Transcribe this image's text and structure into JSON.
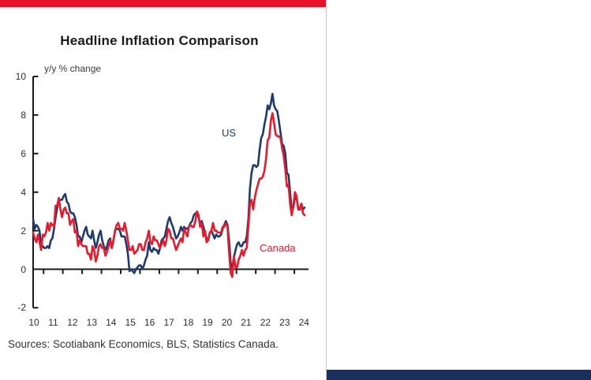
{
  "page": {
    "background": "#ffffff",
    "top_band_color": "#e8112a",
    "bottom_band_color": "#1b2f5c",
    "divider_color": "#c9c9c9"
  },
  "chart": {
    "title": "Headline Inflation Comparison",
    "unit_label": "y/y % change",
    "series_labels": {
      "us": "US",
      "canada": "Canada"
    },
    "sources": "Sources: Scotiabank Economics, BLS, Statistics Canada."
  },
  "chart_data": {
    "type": "line",
    "title": "Headline Inflation Comparison",
    "ylabel": "y/y % change",
    "ylim": [
      -2,
      10
    ],
    "yticks": [
      10,
      8,
      6,
      4,
      2,
      0,
      -2
    ],
    "xtick_labels": [
      "10",
      "11",
      "12",
      "13",
      "14",
      "15",
      "16",
      "17",
      "18",
      "19",
      "20",
      "21",
      "22",
      "23",
      "24"
    ],
    "x_unit": "monthly",
    "x_range": [
      "2010-01",
      "2024-02"
    ],
    "grid": false,
    "legend_position": "inline-annotations",
    "axis_color": "#1a1a1a",
    "series": [
      {
        "name": "US",
        "color": "#1f3a6e",
        "values": [
          2.6,
          2.1,
          2.3,
          2.2,
          2.0,
          1.1,
          1.2,
          1.1,
          1.1,
          1.2,
          1.1,
          1.5,
          1.6,
          2.1,
          2.7,
          3.2,
          3.6,
          3.6,
          3.6,
          3.8,
          3.9,
          3.5,
          3.4,
          3.0,
          2.9,
          2.9,
          2.7,
          2.3,
          1.7,
          1.7,
          1.4,
          1.7,
          2.0,
          2.2,
          1.8,
          1.7,
          1.6,
          2.0,
          1.5,
          1.1,
          1.4,
          1.8,
          2.0,
          1.5,
          1.2,
          1.0,
          1.2,
          1.5,
          1.6,
          1.1,
          1.5,
          2.0,
          2.1,
          2.1,
          2.0,
          1.7,
          1.7,
          1.7,
          1.3,
          0.8,
          -0.1,
          0.0,
          -0.1,
          -0.2,
          0.0,
          0.1,
          0.2,
          0.2,
          0.0,
          0.2,
          0.5,
          0.7,
          1.4,
          1.0,
          0.9,
          1.1,
          1.0,
          1.0,
          0.8,
          1.1,
          1.5,
          1.6,
          1.7,
          2.1,
          2.5,
          2.7,
          2.4,
          2.2,
          1.9,
          1.6,
          1.7,
          1.9,
          2.2,
          2.0,
          2.2,
          2.1,
          2.1,
          2.2,
          2.4,
          2.5,
          2.8,
          2.9,
          2.9,
          2.7,
          2.3,
          2.5,
          2.2,
          1.9,
          1.6,
          1.5,
          1.9,
          2.0,
          1.8,
          1.6,
          1.8,
          1.7,
          1.7,
          1.8,
          2.1,
          2.3,
          2.5,
          2.3,
          1.5,
          0.3,
          0.1,
          0.6,
          1.0,
          1.3,
          1.4,
          1.2,
          1.2,
          1.4,
          1.4,
          1.7,
          2.6,
          4.2,
          5.0,
          5.4,
          5.4,
          5.3,
          5.4,
          6.2,
          6.8,
          7.0,
          7.5,
          7.9,
          8.5,
          8.3,
          8.6,
          9.1,
          8.5,
          8.3,
          8.2,
          7.7,
          7.1,
          6.5,
          6.4,
          6.0,
          5.0,
          4.9,
          4.0,
          3.0,
          3.2,
          3.7,
          3.7,
          3.2,
          3.1,
          3.4,
          3.1,
          3.2
        ]
      },
      {
        "name": "Canada",
        "color": "#e8192b",
        "values": [
          1.9,
          1.6,
          1.4,
          1.8,
          1.4,
          1.0,
          1.8,
          1.7,
          1.9,
          2.4,
          2.0,
          2.4,
          2.3,
          2.2,
          3.3,
          3.3,
          3.7,
          3.1,
          2.7,
          3.1,
          3.2,
          2.9,
          2.9,
          2.3,
          2.5,
          2.6,
          1.9,
          2.0,
          1.2,
          1.5,
          1.3,
          1.2,
          1.2,
          1.2,
          0.8,
          0.8,
          0.5,
          1.2,
          1.0,
          0.4,
          0.7,
          1.2,
          1.3,
          1.1,
          1.1,
          0.7,
          0.9,
          1.2,
          1.5,
          1.1,
          1.5,
          2.0,
          2.3,
          2.4,
          2.1,
          2.1,
          2.0,
          2.4,
          2.0,
          1.5,
          1.0,
          1.0,
          1.2,
          0.8,
          0.9,
          1.0,
          1.3,
          1.3,
          1.0,
          1.0,
          1.4,
          1.6,
          2.0,
          1.4,
          1.3,
          1.7,
          1.5,
          1.5,
          1.3,
          1.1,
          1.3,
          1.5,
          1.2,
          1.5,
          2.1,
          2.0,
          1.6,
          1.6,
          1.3,
          1.0,
          1.2,
          1.4,
          1.6,
          1.4,
          2.1,
          1.9,
          1.7,
          2.2,
          2.3,
          2.2,
          2.2,
          2.5,
          3.0,
          2.8,
          2.2,
          2.4,
          1.7,
          2.0,
          1.4,
          1.5,
          1.9,
          2.0,
          2.4,
          2.0,
          2.0,
          1.9,
          1.9,
          1.9,
          2.2,
          2.2,
          2.4,
          2.2,
          0.9,
          -0.2,
          -0.4,
          0.7,
          0.1,
          0.1,
          0.5,
          0.7,
          1.0,
          0.7,
          1.0,
          1.1,
          2.2,
          3.4,
          3.6,
          3.1,
          3.7,
          4.1,
          4.4,
          4.7,
          4.7,
          4.8,
          5.1,
          5.7,
          6.7,
          6.8,
          7.7,
          8.1,
          7.6,
          7.0,
          6.9,
          6.9,
          6.8,
          6.3,
          5.9,
          5.2,
          4.3,
          4.4,
          3.4,
          2.8,
          3.3,
          4.0,
          3.8,
          3.1,
          3.1,
          3.4,
          2.9,
          2.8
        ]
      }
    ]
  }
}
